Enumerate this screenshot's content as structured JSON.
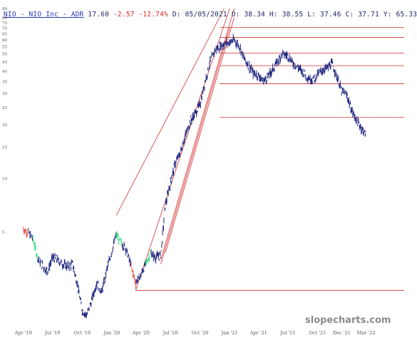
{
  "header": {
    "symbol": "NIO - NIO Inc - ADR",
    "last": "17.60",
    "change": "-2.57",
    "change_pct": "-12.74%",
    "date": "D: 05/05/2021",
    "open": "O: 38.34",
    "high": "H: 38.55",
    "low": "L: 37.46",
    "close": "C: 37.71",
    "y": "Y: 65.33"
  },
  "watermark": "slopecharts.com",
  "colors": {
    "candle_main": "#1a237e",
    "candle_up": "#3ddc84",
    "candle_down": "#e8594a",
    "line_red": "#d32f2f",
    "axis_text": "#555555",
    "header_neg": "#d42a2a"
  },
  "chart_data": {
    "type": "line",
    "title": "NIO - NIO Inc - ADR",
    "scale": "log",
    "ylim": [
      1.5,
      90
    ],
    "y_ticks": [
      5,
      10,
      15,
      20,
      25,
      30,
      35,
      40,
      45,
      50,
      55,
      60,
      65,
      70,
      75,
      80,
      90
    ],
    "x_ticks": [
      "Apr '19",
      "Jul '19",
      "Oct '19",
      "Jan '20",
      "Apr '20",
      "Jul '20",
      "Oct '20",
      "Jan '21",
      "Apr '21",
      "Jul '21",
      "Oct '21",
      "Dec '21",
      "Mar '22"
    ],
    "x": [
      "2019-04-01",
      "2019-04-15",
      "2019-05-01",
      "2019-05-15",
      "2019-06-01",
      "2019-06-15",
      "2019-07-01",
      "2019-07-15",
      "2019-08-01",
      "2019-08-15",
      "2019-09-01",
      "2019-09-15",
      "2019-10-01",
      "2019-10-15",
      "2019-11-01",
      "2019-11-15",
      "2019-12-01",
      "2019-12-15",
      "2020-01-01",
      "2020-01-15",
      "2020-02-01",
      "2020-02-15",
      "2020-03-01",
      "2020-03-15",
      "2020-04-01",
      "2020-04-15",
      "2020-05-01",
      "2020-05-15",
      "2020-06-01",
      "2020-06-15",
      "2020-07-01",
      "2020-07-15",
      "2020-08-01",
      "2020-08-15",
      "2020-09-01",
      "2020-09-15",
      "2020-10-01",
      "2020-10-15",
      "2020-11-01",
      "2020-11-15",
      "2020-12-01",
      "2020-12-15",
      "2021-01-01",
      "2021-01-15",
      "2021-02-01",
      "2021-02-15",
      "2021-03-01",
      "2021-03-15",
      "2021-04-01",
      "2021-04-15",
      "2021-05-01",
      "2021-05-15",
      "2021-06-01",
      "2021-06-15",
      "2021-07-01",
      "2021-07-15",
      "2021-08-01",
      "2021-08-15",
      "2021-09-01",
      "2021-09-15",
      "2021-10-01",
      "2021-10-15",
      "2021-11-01",
      "2021-11-15",
      "2021-12-01",
      "2021-12-15",
      "2022-01-01",
      "2022-01-15",
      "2022-02-01",
      "2022-02-15",
      "2022-03-01"
    ],
    "series": [
      {
        "values": [
          5.2,
          5.0,
          4.6,
          3.6,
          3.2,
          3.0,
          3.6,
          3.5,
          3.3,
          3.2,
          3.3,
          2.6,
          1.8,
          1.7,
          2.1,
          2.6,
          2.3,
          3.0,
          3.9,
          4.8,
          4.3,
          4.0,
          3.2,
          2.6,
          2.9,
          3.3,
          3.8,
          3.6,
          3.7,
          7.0,
          9.5,
          12.0,
          14.0,
          17.0,
          21.0,
          23.0,
          26.0,
          34.0,
          45.0,
          52.0,
          55.0,
          57.0,
          58.0,
          60.0,
          55.0,
          47.0,
          43.0,
          39.0,
          38.0,
          35.0,
          37.5,
          41.0,
          46.0,
          50.0,
          49.0,
          45.0,
          42.0,
          40.0,
          37.0,
          36.0,
          38.0,
          40.5,
          42.0,
          44.0,
          37.0,
          31.0,
          29.0,
          24.0,
          21.0,
          19.0,
          17.6
        ]
      }
    ],
    "highlight_up": [
      [
        "2019-05-01",
        "2019-05-15"
      ],
      [
        "2020-01-15",
        "2020-02-01"
      ],
      [
        "2020-04-15",
        "2020-05-01"
      ]
    ],
    "highlight_down": [
      [
        "2019-04-01",
        "2019-04-15"
      ],
      [
        "2020-03-01",
        "2020-03-15"
      ]
    ],
    "horizontal_levels": [
      70.5,
      62.0,
      50.5,
      43.0,
      34.0,
      22.0,
      2.35
    ],
    "trendlines": [
      [
        [
          "2020-03-15",
          2.35
        ],
        [
          "2020-03-15",
          2.35
        ],
        [
          "2021-01-01",
          90
        ]
      ],
      [
        [
          "2020-06-01",
          3.5
        ],
        [
          "2021-01-15",
          90
        ]
      ],
      [
        [
          "2020-06-15",
          3.8
        ],
        [
          "2021-01-15",
          80
        ]
      ],
      [
        [
          "2020-06-01",
          3.3
        ],
        [
          "2021-01-01",
          70
        ]
      ],
      [
        [
          "2020-01-15",
          6.2
        ],
        [
          "2020-12-15",
          90
        ]
      ]
    ],
    "grid": false,
    "legend": "none"
  }
}
